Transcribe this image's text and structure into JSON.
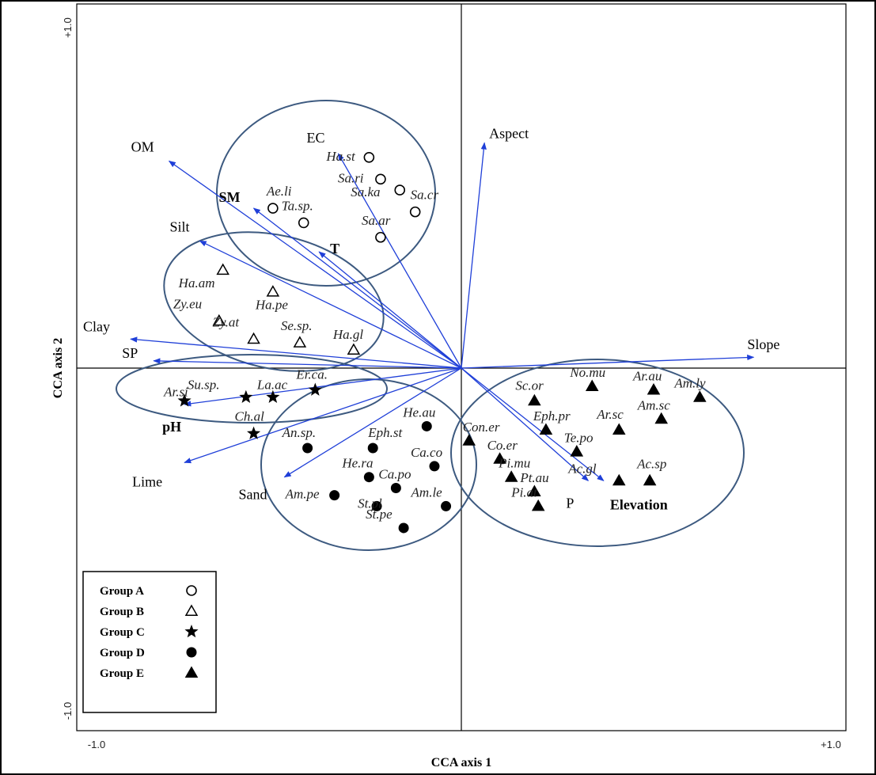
{
  "chart_data": {
    "type": "scatter",
    "xlabel": "CCA axis 1",
    "ylabel": "CCA axis 2",
    "xlim": [
      -1.0,
      1.0
    ],
    "ylim": [
      -1.0,
      1.0
    ],
    "x_tick_labels": [
      "-1.0",
      "+1.0"
    ],
    "y_tick_labels": [
      "+1.0",
      "-1.0"
    ],
    "grid": false,
    "legend_position": "bottom-left",
    "colors": {
      "arrow": "#1f3fd8",
      "ellipse": "#3d5a80",
      "marker": "#000000"
    },
    "groups": [
      {
        "name": "Group A",
        "marker": "circle-open"
      },
      {
        "name": "Group B",
        "marker": "triangle-open"
      },
      {
        "name": "Group C",
        "marker": "star"
      },
      {
        "name": "Group D",
        "marker": "circle-filled"
      },
      {
        "name": "Group E",
        "marker": "triangle-filled"
      }
    ],
    "vectors": [
      {
        "name": "EC",
        "x": -0.32,
        "y": 0.59
      },
      {
        "name": "OM",
        "x": -0.76,
        "y": 0.57
      },
      {
        "name": "SM",
        "x": -0.54,
        "y": 0.44
      },
      {
        "name": "Silt",
        "x": -0.68,
        "y": 0.35
      },
      {
        "name": "T",
        "x": -0.37,
        "y": 0.32
      },
      {
        "name": "Clay",
        "x": -0.86,
        "y": 0.08
      },
      {
        "name": "SP",
        "x": -0.8,
        "y": 0.02
      },
      {
        "name": "pH",
        "x": -0.72,
        "y": -0.1
      },
      {
        "name": "Lime",
        "x": -0.72,
        "y": -0.26
      },
      {
        "name": "Sand",
        "x": -0.46,
        "y": -0.3
      },
      {
        "name": "Aspect",
        "x": 0.06,
        "y": 0.62
      },
      {
        "name": "Slope",
        "x": 0.76,
        "y": 0.03
      },
      {
        "name": "P",
        "x": 0.33,
        "y": -0.31
      },
      {
        "name": "Elevation",
        "x": 0.37,
        "y": -0.31
      }
    ],
    "species": [
      {
        "label": "Ha.st",
        "group": "Group A",
        "x": -0.24,
        "y": 0.58
      },
      {
        "label": "Sa.ri",
        "group": "Group A",
        "x": -0.21,
        "y": 0.52
      },
      {
        "label": "Sa.ka",
        "group": "Group A",
        "x": -0.16,
        "y": 0.49
      },
      {
        "label": "Sa.cr",
        "group": "Group A",
        "x": -0.12,
        "y": 0.43
      },
      {
        "label": "Ae.li",
        "group": "Group A",
        "x": -0.49,
        "y": 0.44
      },
      {
        "label": "Ta.sp.",
        "group": "Group A",
        "x": -0.41,
        "y": 0.4
      },
      {
        "label": "Sa.ar",
        "group": "Group A",
        "x": -0.21,
        "y": 0.36
      },
      {
        "label": "Ha.am",
        "group": "Group B",
        "x": -0.62,
        "y": 0.27
      },
      {
        "label": "Ha.pe",
        "group": "Group B",
        "x": -0.49,
        "y": 0.21
      },
      {
        "label": "Zy.eu",
        "group": "Group B",
        "x": -0.63,
        "y": 0.13
      },
      {
        "label": "Zy.at",
        "group": "Group B",
        "x": -0.54,
        "y": 0.08
      },
      {
        "label": "Se.sp.",
        "group": "Group B",
        "x": -0.42,
        "y": 0.07
      },
      {
        "label": "Ha.gl",
        "group": "Group B",
        "x": -0.28,
        "y": 0.05
      },
      {
        "label": "Ar.si",
        "group": "Group C",
        "x": -0.72,
        "y": -0.09
      },
      {
        "label": "Su.sp.",
        "group": "Group C",
        "x": -0.56,
        "y": -0.08
      },
      {
        "label": "La.ac",
        "group": "Group C",
        "x": -0.49,
        "y": -0.08
      },
      {
        "label": "Er.ca.",
        "group": "Group C",
        "x": -0.38,
        "y": -0.06
      },
      {
        "label": "Ch.al",
        "group": "Group C",
        "x": -0.54,
        "y": -0.18
      },
      {
        "label": "He.au",
        "group": "Group D",
        "x": -0.09,
        "y": -0.16
      },
      {
        "label": "An.sp.",
        "group": "Group D",
        "x": -0.4,
        "y": -0.22
      },
      {
        "label": "Eph.st",
        "group": "Group D",
        "x": -0.23,
        "y": -0.22
      },
      {
        "label": "Ca.co",
        "group": "Group D",
        "x": -0.07,
        "y": -0.27
      },
      {
        "label": "He.ra",
        "group": "Group D",
        "x": -0.24,
        "y": -0.3
      },
      {
        "label": "Ca.po",
        "group": "Group D",
        "x": -0.17,
        "y": -0.33
      },
      {
        "label": "Am.pe",
        "group": "Group D",
        "x": -0.33,
        "y": -0.35
      },
      {
        "label": "St.pl",
        "group": "Group D",
        "x": -0.22,
        "y": -0.38
      },
      {
        "label": "Am.le",
        "group": "Group D",
        "x": -0.04,
        "y": -0.38
      },
      {
        "label": "St.pe",
        "group": "Group D",
        "x": -0.15,
        "y": -0.44
      },
      {
        "label": "Con.er",
        "group": "Group E",
        "x": 0.02,
        "y": -0.2
      },
      {
        "label": "Sc.or",
        "group": "Group E",
        "x": 0.19,
        "y": -0.09
      },
      {
        "label": "No.mu",
        "group": "Group E",
        "x": 0.34,
        "y": -0.05
      },
      {
        "label": "Ar.au",
        "group": "Group E",
        "x": 0.5,
        "y": -0.06
      },
      {
        "label": "Am.ly",
        "group": "Group E",
        "x": 0.62,
        "y": -0.08
      },
      {
        "label": "Eph.pr",
        "group": "Group E",
        "x": 0.22,
        "y": -0.17
      },
      {
        "label": "Ar.sc",
        "group": "Group E",
        "x": 0.41,
        "y": -0.17
      },
      {
        "label": "Am.sc",
        "group": "Group E",
        "x": 0.52,
        "y": -0.14
      },
      {
        "label": "Te.po",
        "group": "Group E",
        "x": 0.3,
        "y": -0.23
      },
      {
        "label": "Co.er",
        "group": "Group E",
        "x": 0.1,
        "y": -0.25
      },
      {
        "label": "Pi.mu",
        "group": "Group E",
        "x": 0.13,
        "y": -0.3
      },
      {
        "label": "Ac.gl",
        "group": "Group E",
        "x": 0.41,
        "y": -0.31
      },
      {
        "label": "Ac.sp",
        "group": "Group E",
        "x": 0.49,
        "y": -0.31
      },
      {
        "label": "Pt.au",
        "group": "Group E",
        "x": 0.19,
        "y": -0.34
      },
      {
        "label": "Pi.at",
        "group": "Group E",
        "x": 0.2,
        "y": -0.38
      }
    ]
  }
}
